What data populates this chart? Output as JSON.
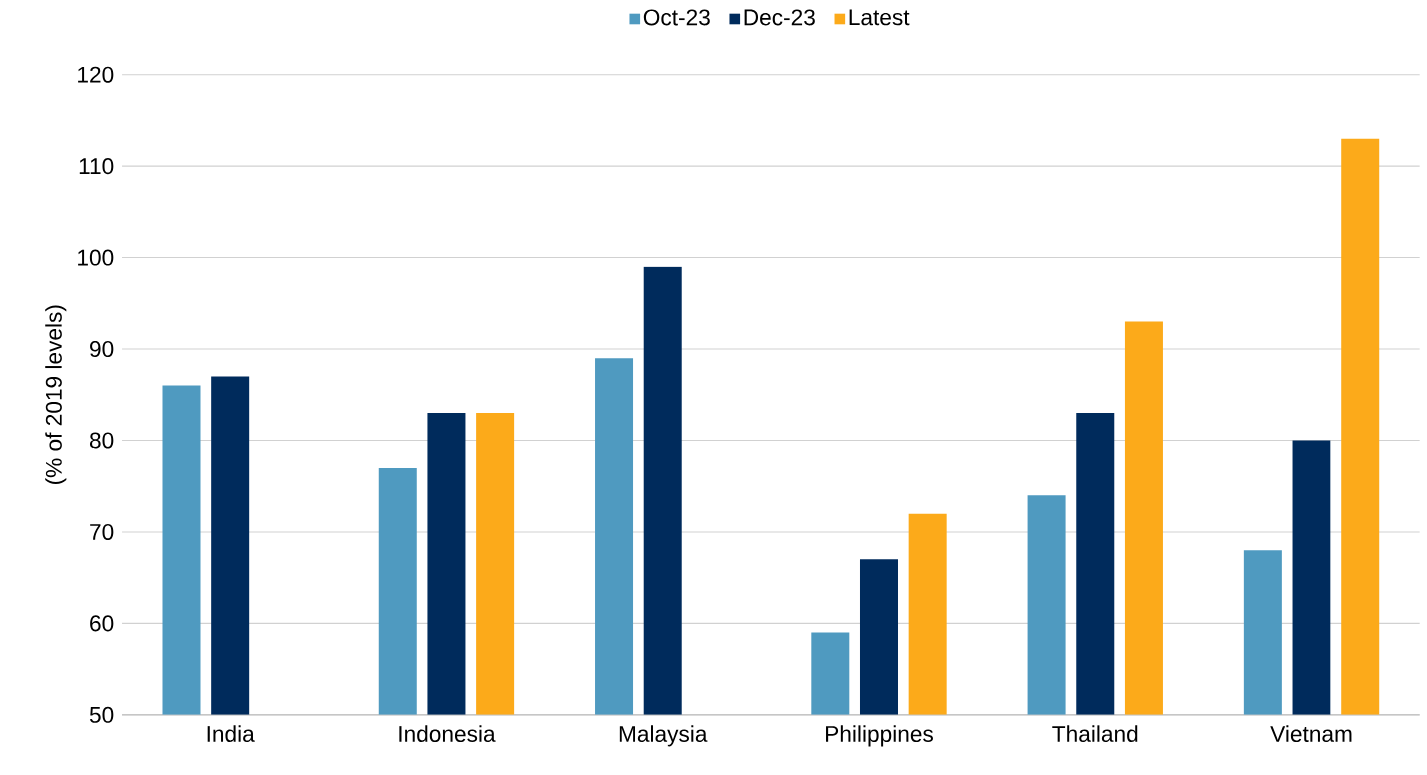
{
  "chart_data": {
    "type": "bar",
    "ylabel": "(% of 2019 levels)",
    "categories": [
      "India",
      "Indonesia",
      "Malaysia",
      "Philippines",
      "Thailand",
      "Vietnam"
    ],
    "series": [
      {
        "name": "Oct-23",
        "color": "#4f9ac0",
        "values": [
          86,
          77,
          89,
          59,
          74,
          68
        ]
      },
      {
        "name": "Dec-23",
        "color": "#002b5c",
        "values": [
          87,
          83,
          99,
          67,
          83,
          80
        ]
      },
      {
        "name": "Latest",
        "color": "#fcaa1a",
        "values": [
          null,
          83,
          null,
          72,
          93,
          113
        ]
      }
    ],
    "ylim": [
      50,
      120
    ],
    "yticks": [
      50,
      60,
      70,
      80,
      90,
      100,
      110,
      120
    ],
    "grid": "y",
    "legend": "top"
  }
}
